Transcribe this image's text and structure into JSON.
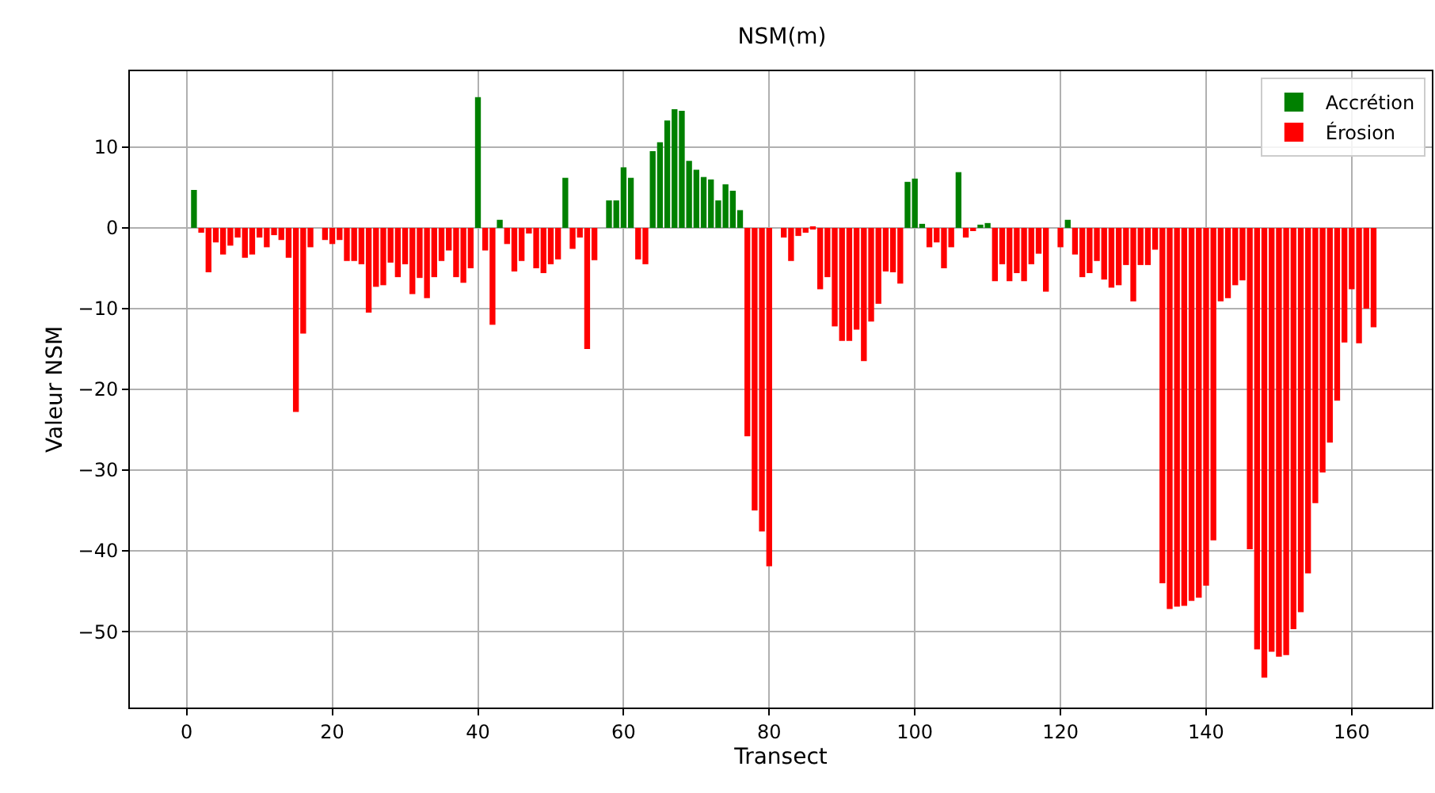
{
  "chart_data": {
    "type": "bar",
    "title": "NSM(m)",
    "xlabel": "Transect",
    "ylabel": "Valeur NSM",
    "x": [
      1,
      2,
      3,
      4,
      5,
      6,
      7,
      8,
      9,
      10,
      11,
      12,
      13,
      14,
      15,
      16,
      17,
      18,
      19,
      20,
      21,
      22,
      23,
      24,
      25,
      26,
      27,
      28,
      29,
      30,
      31,
      32,
      33,
      34,
      35,
      36,
      37,
      38,
      39,
      40,
      41,
      42,
      43,
      44,
      45,
      46,
      47,
      48,
      49,
      50,
      51,
      52,
      53,
      54,
      55,
      56,
      57,
      58,
      59,
      60,
      61,
      62,
      63,
      64,
      65,
      66,
      67,
      68,
      69,
      70,
      71,
      72,
      73,
      74,
      75,
      76,
      77,
      78,
      79,
      80,
      81,
      82,
      83,
      84,
      85,
      86,
      87,
      88,
      89,
      90,
      91,
      92,
      93,
      94,
      95,
      96,
      97,
      98,
      99,
      100,
      101,
      102,
      103,
      104,
      105,
      106,
      107,
      108,
      109,
      110,
      111,
      112,
      113,
      114,
      115,
      116,
      117,
      118,
      119,
      120,
      121,
      122,
      123,
      124,
      125,
      126,
      127,
      128,
      129,
      130,
      131,
      132,
      133,
      134,
      135,
      136,
      137,
      138,
      139,
      140,
      141,
      142,
      143,
      144,
      145,
      146,
      147,
      148,
      149,
      150,
      151,
      152,
      153,
      154,
      155,
      156,
      157,
      158,
      159,
      160,
      161,
      162,
      163
    ],
    "series": [
      {
        "name": "Accrétion",
        "color": "#008000",
        "values": [
          4.7,
          null,
          null,
          null,
          null,
          null,
          null,
          null,
          null,
          null,
          null,
          null,
          null,
          null,
          null,
          null,
          null,
          null,
          null,
          null,
          null,
          null,
          null,
          null,
          null,
          null,
          null,
          null,
          null,
          null,
          null,
          null,
          null,
          null,
          null,
          null,
          null,
          null,
          null,
          16.2,
          null,
          null,
          1.0,
          null,
          null,
          null,
          null,
          null,
          null,
          null,
          null,
          6.2,
          null,
          null,
          null,
          null,
          null,
          3.4,
          3.4,
          7.5,
          6.2,
          null,
          null,
          9.5,
          10.6,
          13.3,
          14.7,
          14.5,
          8.3,
          7.2,
          6.3,
          6.0,
          3.4,
          5.4,
          4.6,
          2.2,
          null,
          null,
          null,
          null,
          null,
          null,
          null,
          null,
          null,
          null,
          null,
          null,
          null,
          null,
          null,
          null,
          null,
          null,
          null,
          null,
          null,
          null,
          5.7,
          6.1,
          0.5,
          null,
          null,
          null,
          null,
          6.9,
          null,
          null,
          0.4,
          0.6,
          null,
          null,
          null,
          null,
          null,
          null,
          null,
          null,
          null,
          null,
          1.0,
          null,
          null,
          null,
          null,
          null,
          null,
          null,
          null,
          null,
          null,
          null,
          null,
          null,
          null,
          null,
          null,
          null,
          null,
          null,
          null,
          null,
          null,
          null,
          null,
          null,
          null,
          null,
          null,
          null,
          null,
          null,
          null,
          null,
          null,
          null,
          null,
          null,
          null,
          null,
          null,
          null,
          null
        ]
      },
      {
        "name": "Érosion",
        "color": "#ff0000",
        "values": [
          null,
          -0.6,
          -5.5,
          -1.8,
          -3.3,
          -2.2,
          -1.2,
          -3.7,
          -3.3,
          -1.2,
          -2.4,
          -0.9,
          -1.5,
          -3.7,
          -22.8,
          -13.1,
          -2.4,
          null,
          -1.5,
          -2.0,
          -1.5,
          -4.1,
          -4.1,
          -4.5,
          -10.5,
          -7.3,
          -7.1,
          -4.3,
          -6.1,
          -4.5,
          -8.2,
          -6.2,
          -8.7,
          -6.1,
          -4.1,
          -2.8,
          -6.1,
          -6.8,
          -5.0,
          null,
          -2.8,
          -12.0,
          null,
          -2.0,
          -5.4,
          -4.1,
          -0.7,
          -5.0,
          -5.6,
          -4.5,
          -3.9,
          null,
          -2.6,
          -1.2,
          -15.0,
          -4.0,
          null,
          null,
          null,
          null,
          null,
          -3.9,
          -4.5,
          null,
          null,
          null,
          null,
          null,
          null,
          null,
          null,
          null,
          null,
          null,
          null,
          null,
          -25.8,
          -35.0,
          -37.6,
          -41.9,
          null,
          -1.2,
          -4.1,
          -1.0,
          -0.6,
          -0.2,
          -7.6,
          -6.1,
          -12.2,
          -14.0,
          -14.0,
          -12.6,
          -16.5,
          -11.6,
          -9.4,
          -5.4,
          -5.5,
          -6.9,
          null,
          null,
          null,
          -2.4,
          -1.8,
          -5.0,
          -2.4,
          null,
          -1.2,
          -0.4,
          null,
          null,
          -6.6,
          -4.5,
          -6.6,
          -5.6,
          -6.6,
          -4.5,
          -3.2,
          -7.9,
          null,
          -2.4,
          null,
          -3.3,
          -6.1,
          -5.6,
          -4.1,
          -6.4,
          -7.4,
          -7.1,
          -4.6,
          -9.1,
          -4.6,
          -4.6,
          -2.7,
          -44.0,
          -47.2,
          -46.9,
          -46.8,
          -46.2,
          -45.8,
          -44.3,
          -38.7,
          -9.1,
          -8.7,
          -7.1,
          -6.5,
          -39.8,
          -52.2,
          -55.7,
          -52.5,
          -53.1,
          -52.9,
          -49.7,
          -47.6,
          -42.8,
          -34.1,
          -30.3,
          -26.6,
          -21.4,
          -14.2,
          -7.6,
          -14.3,
          -10.0,
          -12.3
        ]
      }
    ],
    "xlim": [
      -7.8,
      171
    ],
    "xticks": [
      0,
      20,
      40,
      60,
      80,
      100,
      120,
      140,
      160
    ],
    "ylim": [
      -59.4,
      19.4
    ],
    "yticks": [
      {
        "value": -50,
        "label": "−50"
      },
      {
        "value": -40,
        "label": "−40"
      },
      {
        "value": -30,
        "label": "−30"
      },
      {
        "value": -20,
        "label": "−20"
      },
      {
        "value": -10,
        "label": "−10"
      },
      0,
      10
    ],
    "grid": true,
    "legend": "top right"
  }
}
